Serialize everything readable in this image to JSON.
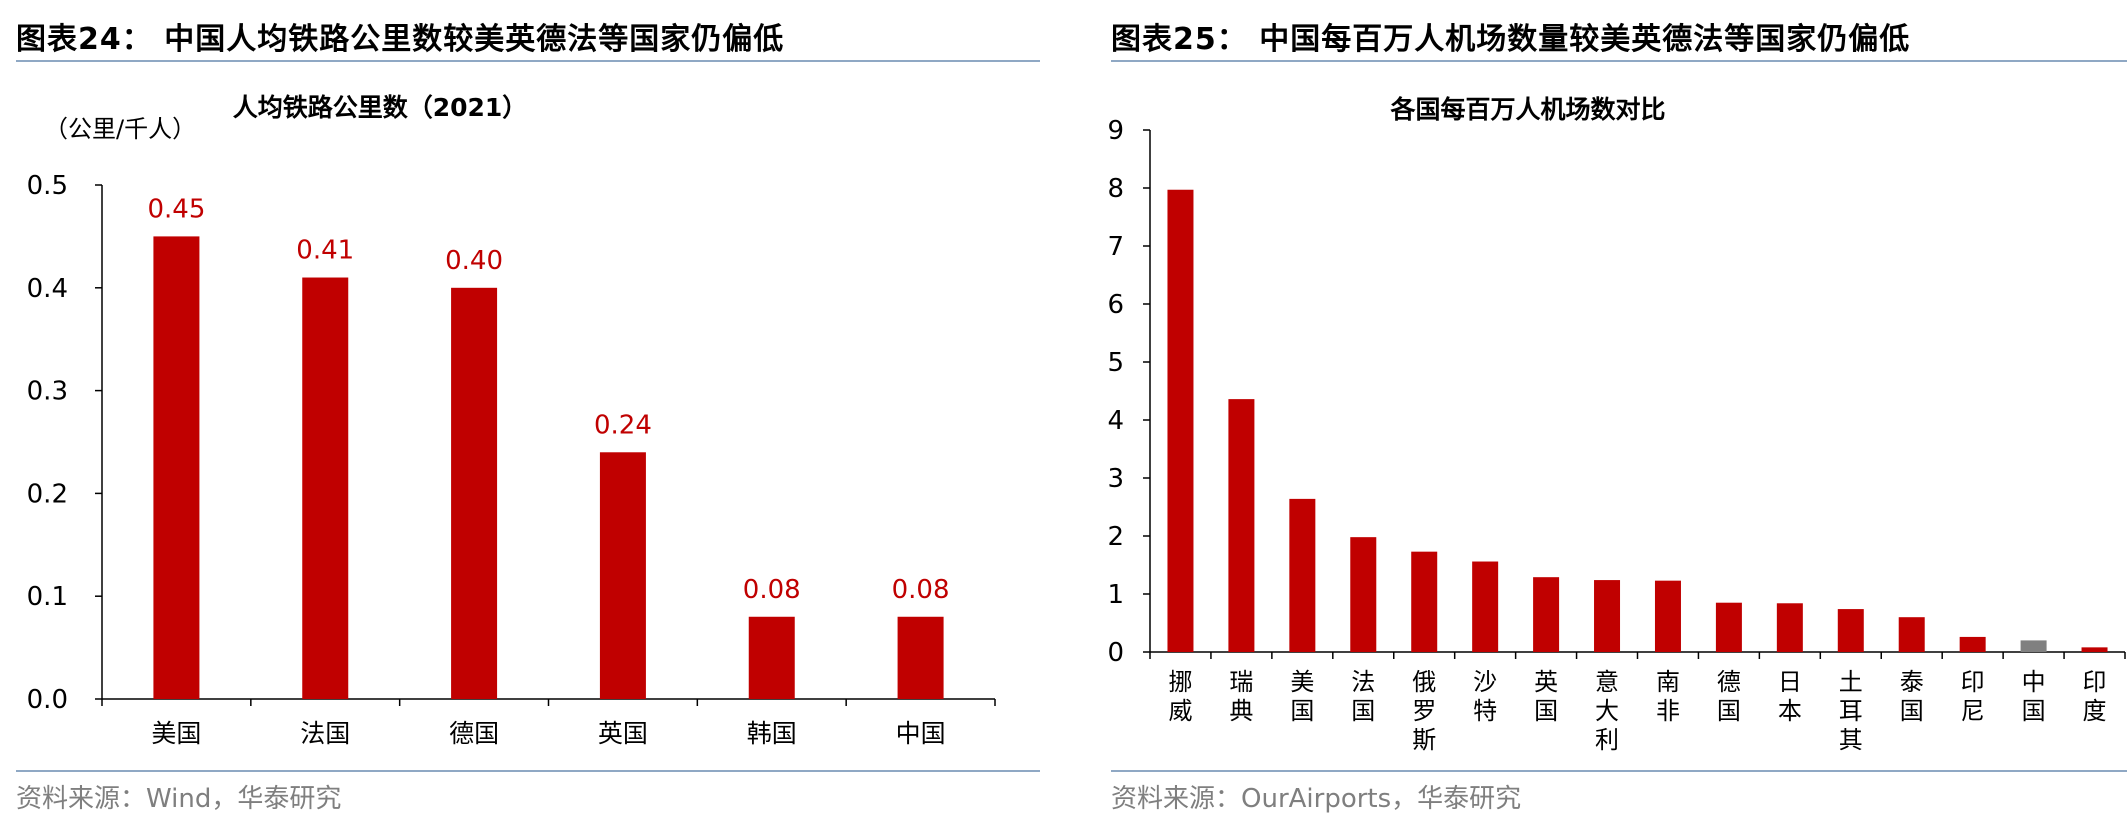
{
  "left": {
    "figure_title": "图表24：  中国人均铁路公里数较美英德法等国家仍偏低",
    "source": "资料来源：Wind，华泰研究",
    "chart_data": {
      "type": "bar",
      "title": "人均铁路公里数（2021）",
      "unit_label": "（公里/千人）",
      "categories": [
        "美国",
        "法国",
        "德国",
        "英国",
        "韩国",
        "中国"
      ],
      "values": [
        0.45,
        0.41,
        0.4,
        0.24,
        0.08,
        0.08
      ],
      "value_labels": [
        "0.45",
        "0.41",
        "0.40",
        "0.24",
        "0.08",
        "0.08"
      ],
      "ylim": [
        0,
        0.5
      ],
      "yticks": [
        "0.0",
        "0.1",
        "0.2",
        "0.3",
        "0.4",
        "0.5"
      ],
      "bar_color": "#C00000",
      "label_color": "#C00000",
      "grid": false
    }
  },
  "right": {
    "figure_title": "图表25：  中国每百万人机场数量较美英德法等国家仍偏低",
    "source": "资料来源：OurAirports，华泰研究",
    "chart_data": {
      "type": "bar",
      "title": "各国每百万人机场数对比",
      "categories": [
        "挪威",
        "瑞典",
        "美国",
        "法国",
        "俄罗斯",
        "沙特",
        "英国",
        "意大利",
        "南非",
        "德国",
        "日本",
        "土耳其",
        "泰国",
        "印尼",
        "中国",
        "印度"
      ],
      "values": [
        7.97,
        4.36,
        2.64,
        1.98,
        1.73,
        1.56,
        1.29,
        1.24,
        1.23,
        0.85,
        0.84,
        0.74,
        0.6,
        0.26,
        0.2,
        0.08
      ],
      "ylim": [
        0,
        9
      ],
      "yticks": [
        "0",
        "1",
        "2",
        "3",
        "4",
        "5",
        "6",
        "7",
        "8",
        "9"
      ],
      "bar_color": "#C00000",
      "highlight_category": "中国",
      "highlight_color": "#808080",
      "grid": false
    }
  }
}
